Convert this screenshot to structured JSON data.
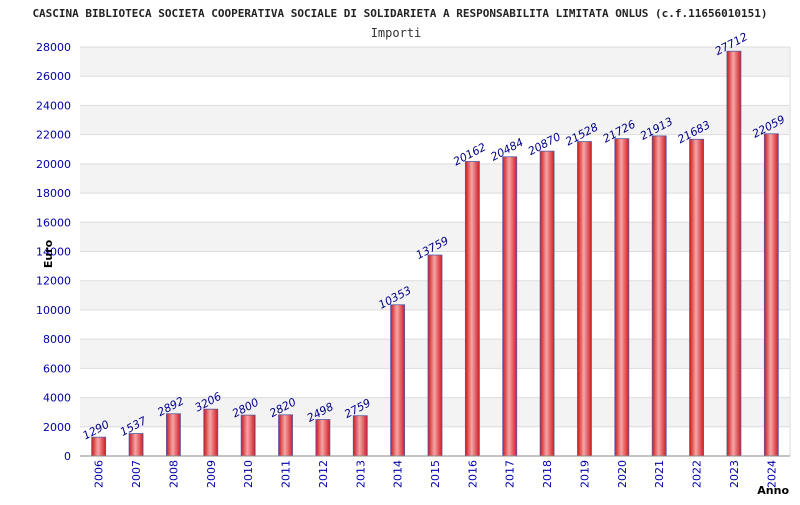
{
  "chart_data": {
    "type": "bar",
    "title": "CASCINA BIBLIOTECA SOCIETA COOPERATIVA SOCIALE DI SOLIDARIETA A RESPONSABILITA LIMITATA ONLUS (c.f.11656010151)",
    "subtitle": "Importi",
    "xlabel": "Anno",
    "ylabel": "Euro",
    "categories": [
      "2006",
      "2007",
      "2008",
      "2009",
      "2010",
      "2011",
      "2012",
      "2013",
      "2014",
      "2015",
      "2016",
      "2017",
      "2018",
      "2019",
      "2020",
      "2021",
      "2022",
      "2023",
      "2024"
    ],
    "values": [
      1290,
      1537,
      2892,
      3206,
      2800,
      2820,
      2498,
      2759,
      10353,
      13759,
      20162,
      20484,
      20870,
      21528,
      21726,
      21913,
      21683,
      27712,
      22059
    ],
    "ylim": [
      0,
      28000
    ],
    "yticks": [
      0,
      2000,
      4000,
      6000,
      8000,
      10000,
      12000,
      14000,
      16000,
      18000,
      20000,
      22000,
      24000,
      26000,
      28000
    ],
    "grid": true,
    "colors": {
      "bar": "#e8242c",
      "bar_highlight": "#f4a0a0",
      "bar_edge": "#5a5aa0",
      "band": "#f3f3f3",
      "tick": "#0000aa"
    }
  }
}
